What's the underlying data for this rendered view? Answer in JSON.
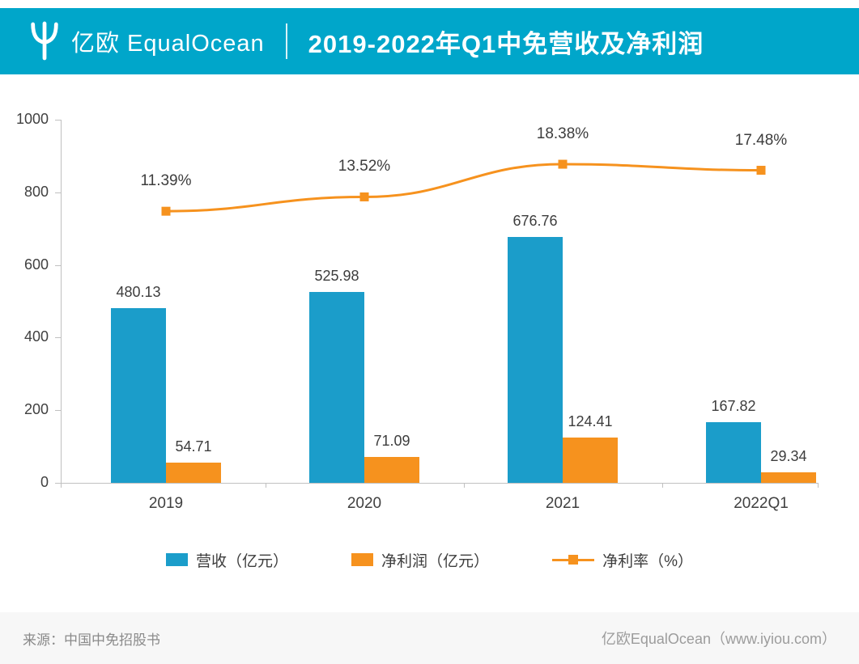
{
  "header": {
    "brand": "亿欧 EqualOcean",
    "title": "2019-2022年Q1中免营收及净利润"
  },
  "chart_data": {
    "type": "bar",
    "title": "2019-2022年Q1中免营收及净利润",
    "categories": [
      "2019",
      "2020",
      "2021",
      "2022Q1"
    ],
    "series": [
      {
        "name": "营收（亿元）",
        "type": "bar",
        "color": "#1b9dca",
        "values": [
          480.13,
          525.98,
          676.76,
          167.82
        ],
        "labels": [
          "480.13",
          "525.98",
          "676.76",
          "167.82"
        ]
      },
      {
        "name": "净利润（亿元）",
        "type": "bar",
        "color": "#f6921e",
        "values": [
          54.71,
          71.09,
          124.41,
          29.34
        ],
        "labels": [
          "54.71",
          "71.09",
          "124.41",
          "29.34"
        ]
      },
      {
        "name": "净利率（%）",
        "type": "line",
        "color": "#f6921e",
        "values": [
          11.39,
          13.52,
          18.38,
          17.48
        ],
        "labels": [
          "11.39%",
          "13.52%",
          "18.38%",
          "17.48%"
        ]
      }
    ],
    "xlabel": "",
    "ylabel": "",
    "ylim": [
      0,
      1000
    ],
    "yticks": [
      0,
      200,
      400,
      600,
      800,
      1000
    ],
    "y2lim": [
      -29,
      25
    ],
    "grid": false,
    "legend_position": "bottom"
  },
  "legend": {
    "items": [
      {
        "label": "营收（亿元）",
        "color": "#1b9dca",
        "type": "bar"
      },
      {
        "label": "净利润（亿元）",
        "color": "#f6921e",
        "type": "bar"
      },
      {
        "label": "净利率（%）",
        "color": "#f6921e",
        "type": "line"
      }
    ]
  },
  "footer": {
    "source": "来源：中国中免招股书",
    "site": "亿欧EqualOcean（www.iyiou.com）"
  },
  "colors": {
    "header_bg": "#00a6ca",
    "bar_blue": "#1b9dca",
    "bar_orange": "#f6921e",
    "line_orange": "#f6921e",
    "text_dark": "#3d3d3d",
    "axis_gray": "#c0c0c0"
  }
}
